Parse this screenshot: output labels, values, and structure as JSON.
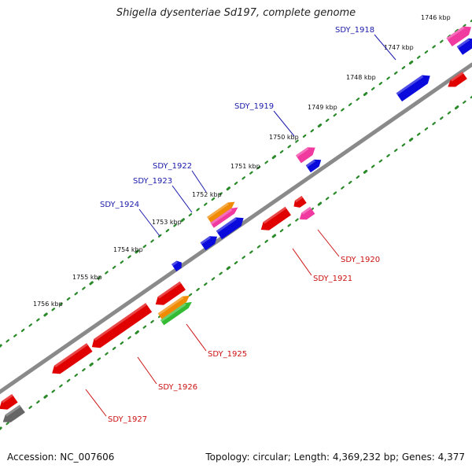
{
  "title": "Shigella dysenteriae Sd197, complete genome",
  "footer": {
    "accession": "Accession: NC_007606",
    "topology": "Topology: circular; Length: 4,369,232 bp; Genes: 4,377"
  },
  "colors": {
    "backbone": "#8a8a8a",
    "forward_label": "#1a1aaa",
    "reverse_label": "#cc1111",
    "tick_dots": "#2a8a2a",
    "red": "#e00000",
    "blue": "#0a0adc",
    "pink": "#f03aa0",
    "orange": "#f08a00",
    "green": "#33bb33",
    "gray": "#666666"
  },
  "ticks": [
    {
      "label": "1746 kbp"
    },
    {
      "label": "1747 kbp"
    },
    {
      "label": "1748 kbp"
    },
    {
      "label": "1749 kbp"
    },
    {
      "label": "1750 kbp"
    },
    {
      "label": "1751 kbp"
    },
    {
      "label": "1752 kbp"
    },
    {
      "label": "1753 kbp"
    },
    {
      "label": "1754 kbp"
    },
    {
      "label": "1755 kbp"
    },
    {
      "label": "1756 kbp"
    }
  ],
  "gene_labels": [
    {
      "id": "SDY_1918",
      "strand": "forward"
    },
    {
      "id": "SDY_1919",
      "strand": "forward"
    },
    {
      "id": "SDY_1922",
      "strand": "forward"
    },
    {
      "id": "SDY_1923",
      "strand": "forward"
    },
    {
      "id": "SDY_1924",
      "strand": "forward"
    },
    {
      "id": "SDY_1920",
      "strand": "reverse"
    },
    {
      "id": "SDY_1921",
      "strand": "reverse"
    },
    {
      "id": "SDY_1925",
      "strand": "reverse"
    },
    {
      "id": "SDY_1926",
      "strand": "reverse"
    },
    {
      "id": "SDY_1927",
      "strand": "reverse"
    }
  ],
  "genes": [
    {
      "color": "pink"
    },
    {
      "color": "blue"
    },
    {
      "color": "blue"
    },
    {
      "color": "red"
    },
    {
      "color": "pink"
    },
    {
      "color": "blue"
    },
    {
      "color": "red"
    },
    {
      "color": "pink"
    },
    {
      "color": "orange"
    },
    {
      "color": "pink"
    },
    {
      "color": "blue"
    },
    {
      "color": "blue"
    },
    {
      "color": "red"
    },
    {
      "color": "blue"
    },
    {
      "color": "red"
    },
    {
      "color": "orange"
    },
    {
      "color": "green"
    },
    {
      "color": "red"
    },
    {
      "color": "red"
    },
    {
      "color": "red"
    },
    {
      "color": "gray"
    }
  ]
}
